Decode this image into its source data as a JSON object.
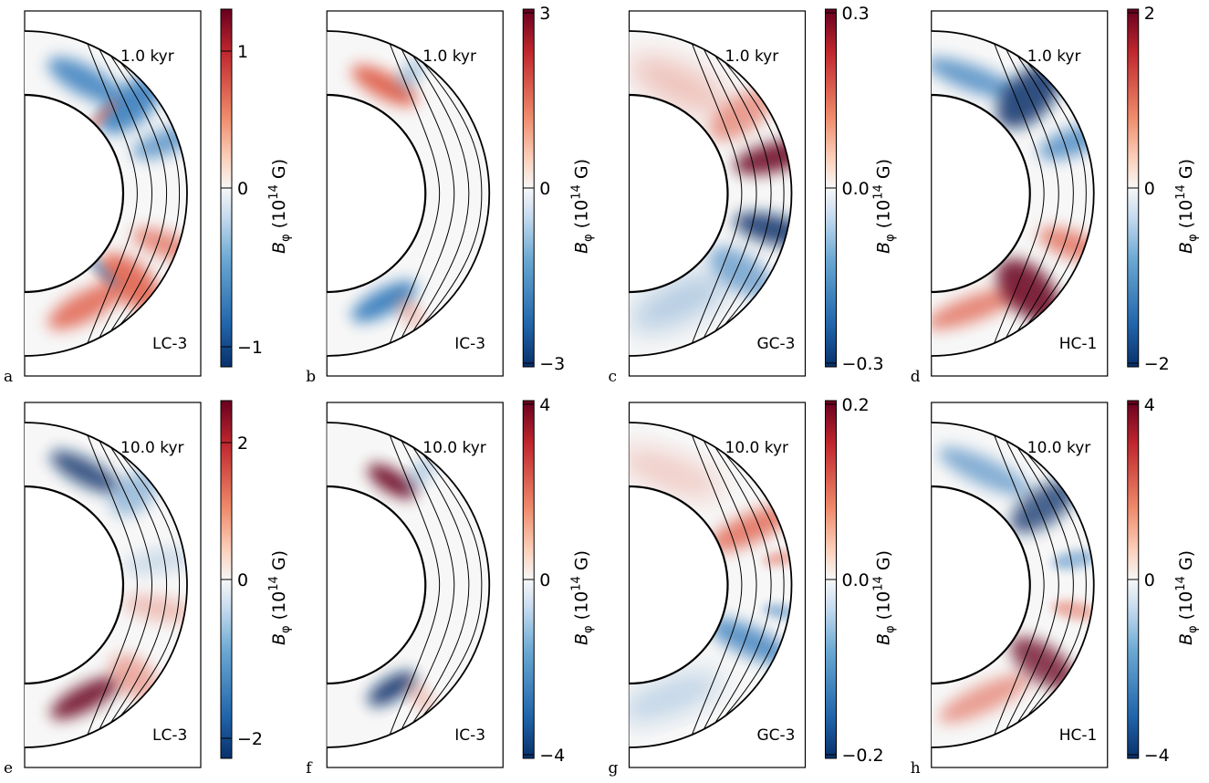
{
  "colormap": {
    "negative": "#08306b",
    "mid_negative": "#3b7fbd",
    "zero": "#f7f7f7",
    "mid_positive": "#e0644f",
    "positive": "#67001f"
  },
  "colorbar_label": {
    "symbol": "B",
    "subscript": "φ",
    "open": "(10",
    "exponent": "14",
    "unit": "G)"
  },
  "panels": [
    {
      "letter": "a",
      "time": "1.0",
      "unit": "kyr",
      "model": "LC-3",
      "ticks": [
        "1",
        "0",
        "−1"
      ],
      "pattern": "lc1"
    },
    {
      "letter": "b",
      "time": "1.0",
      "unit": "kyr",
      "model": "IC-3",
      "ticks": [
        "3",
        "0",
        "−3"
      ],
      "pattern": "ic1"
    },
    {
      "letter": "c",
      "time": "1.0",
      "unit": "kyr",
      "model": "GC-3",
      "ticks": [
        "0.3",
        "0.0",
        "−0.3"
      ],
      "pattern": "gc1"
    },
    {
      "letter": "d",
      "time": "1.0",
      "unit": "kyr",
      "model": "HC-1",
      "ticks": [
        "2",
        "0",
        "−2"
      ],
      "pattern": "hc1"
    },
    {
      "letter": "e",
      "time": "10.0",
      "unit": "kyr",
      "model": "LC-3",
      "ticks": [
        "2",
        "0",
        "−2"
      ],
      "pattern": "lc10"
    },
    {
      "letter": "f",
      "time": "10.0",
      "unit": "kyr",
      "model": "IC-3",
      "ticks": [
        "4",
        "0",
        "−4"
      ],
      "pattern": "ic10"
    },
    {
      "letter": "g",
      "time": "10.0",
      "unit": "kyr",
      "model": "GC-3",
      "ticks": [
        "0.2",
        "0.0",
        "−0.2"
      ],
      "pattern": "gc10"
    },
    {
      "letter": "h",
      "time": "10.0",
      "unit": "kyr",
      "model": "HC-1",
      "ticks": [
        "4",
        "0",
        "−4"
      ],
      "pattern": "hc10"
    }
  ]
}
